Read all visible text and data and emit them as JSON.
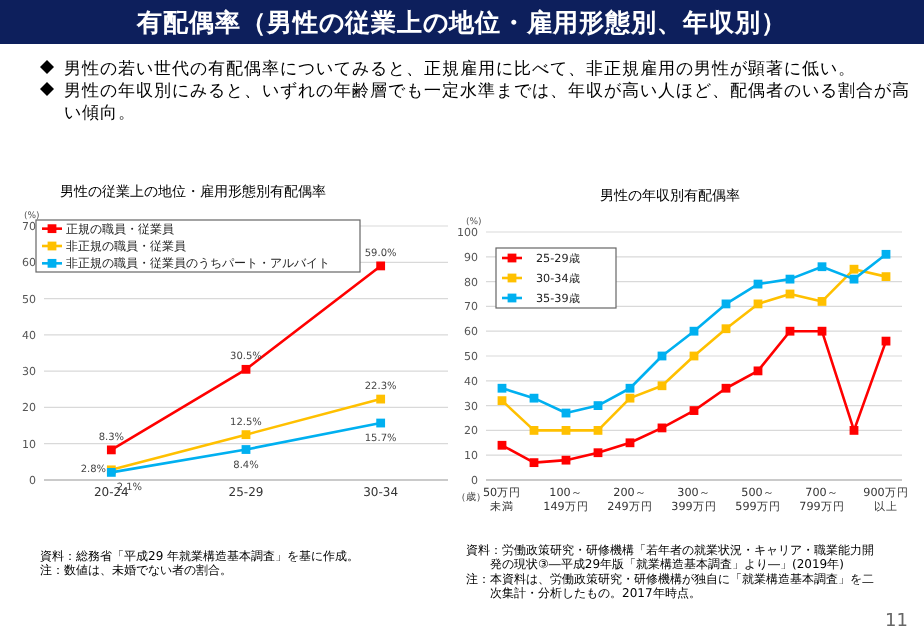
{
  "chart_data": [
    {
      "type": "other",
      "title": "有配偶率（男性の従業上の地位・雇用形態別、年収別）",
      "annotations": [
        "男性の若い世代の有配偶率についてみると、正規雇用に比べて、非正規雇用の男性が顕著に低い。",
        "男性の年収別にみると、いずれの年齢層でも一定水準までは、年収が高い人ほど、配偶者のいる割合が高い傾向。",
        "11"
      ]
    },
    {
      "type": "line",
      "title": "男性の従業上の地位・雇用形態別有配偶率",
      "ylabel": "(%)",
      "xlabel": "（歳）",
      "categories": [
        "20-24",
        "25-29",
        "30-34"
      ],
      "ylim": [
        0,
        70
      ],
      "yticks": [
        0,
        10,
        20,
        30,
        40,
        50,
        60,
        70
      ],
      "grid": "y",
      "legend": "top left",
      "marker": "square",
      "line_style": "solid",
      "series": [
        {
          "name": "正規の職員・従業員",
          "color": "#ff0000",
          "values": [
            8.3,
            30.5,
            59.0
          ],
          "value_labels": [
            "8.3%",
            "30.5%",
            "59.0%"
          ]
        },
        {
          "name": "非正規の職員・従業員",
          "color": "#ffc000",
          "values": [
            2.8,
            12.5,
            22.3
          ],
          "value_labels": [
            "2.8%",
            "12.5%",
            "22.3%"
          ]
        },
        {
          "name": "非正規の職員・従業員のうちパート・アルバイト",
          "color": "#00b0f0",
          "values": [
            2.1,
            8.4,
            15.7
          ],
          "value_labels": [
            "2.1%",
            "8.4%",
            "15.7%"
          ]
        }
      ],
      "annotations": [
        "資料：総務省「平成29 年就業構造基本調査」を基に作成。",
        "注：数値は、未婚でない者の割合。"
      ]
    },
    {
      "type": "line",
      "title": "男性の年収別有配偶率",
      "ylabel": "(%)",
      "categories": [
        "50万円未満",
        null,
        "100～149万円",
        null,
        "200～249万円",
        null,
        "300～399万円",
        null,
        "500～599万円",
        null,
        "700～799万円",
        null,
        "900万円以上"
      ],
      "ylim": [
        0,
        100
      ],
      "yticks": [
        0,
        10,
        20,
        30,
        40,
        50,
        60,
        70,
        80,
        90,
        100
      ],
      "grid": "y",
      "legend": "top left",
      "marker": "square",
      "line_style": "solid",
      "series": [
        {
          "name": "25-29歳",
          "color": "#ff0000",
          "values": [
            14,
            7,
            8,
            11,
            15,
            21,
            28,
            37,
            44,
            60,
            60,
            20,
            56
          ]
        },
        {
          "name": "30-34歳",
          "color": "#ffc000",
          "values": [
            32,
            20,
            20,
            20,
            33,
            38,
            50,
            61,
            71,
            75,
            72,
            85,
            82
          ]
        },
        {
          "name": "35-39歳",
          "color": "#00b0f0",
          "values": [
            37,
            33,
            27,
            30,
            37,
            50,
            60,
            71,
            79,
            81,
            86,
            81,
            91
          ]
        }
      ],
      "annotations": [
        "資料：労働政策研究・研修機構「若年者の就業状況・キャリア・職業能力開発の現状③―平成29年版「就業構造基本調査」より―」(2019年)",
        "注：本資料は、労働政策研究・研修機構が独自に「就業構造基本調査」を二次集計・分析したもの。2017年時点。"
      ]
    }
  ]
}
